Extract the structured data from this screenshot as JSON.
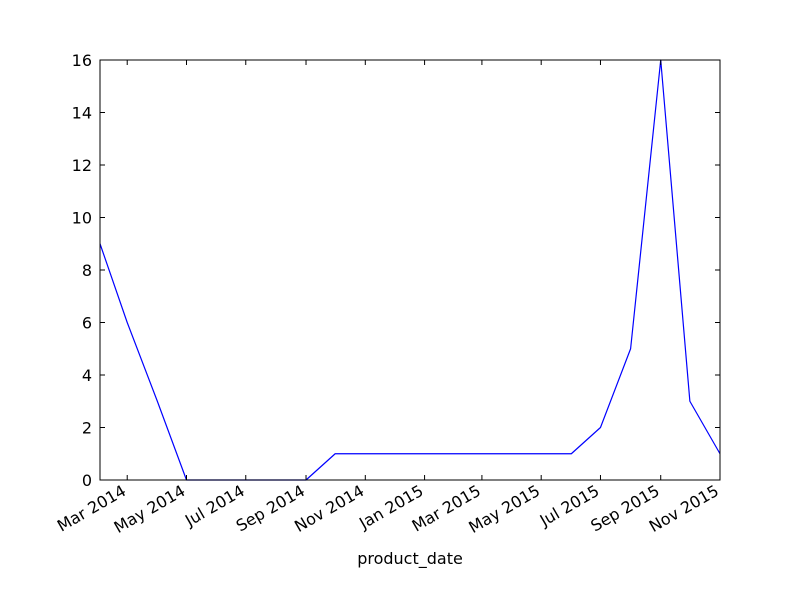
{
  "chart_data": {
    "type": "line",
    "title": "",
    "xlabel": "product_date",
    "ylabel": "",
    "ylim": [
      0,
      16
    ],
    "yticks": [
      0,
      2,
      4,
      6,
      8,
      10,
      12,
      14,
      16
    ],
    "xlim": [
      "2014-02-01",
      "2015-11-01"
    ],
    "xticks": [
      {
        "date": "2014-03-01",
        "label": "Mar 2014"
      },
      {
        "date": "2014-05-01",
        "label": "May 2014"
      },
      {
        "date": "2014-07-01",
        "label": "Jul 2014"
      },
      {
        "date": "2014-09-01",
        "label": "Sep 2014"
      },
      {
        "date": "2014-11-01",
        "label": "Nov 2014"
      },
      {
        "date": "2015-01-01",
        "label": "Jan 2015"
      },
      {
        "date": "2015-03-01",
        "label": "Mar 2015"
      },
      {
        "date": "2015-05-01",
        "label": "May 2015"
      },
      {
        "date": "2015-07-01",
        "label": "Jul 2015"
      },
      {
        "date": "2015-09-01",
        "label": "Sep 2015"
      },
      {
        "date": "2015-11-01",
        "label": "Nov 2015"
      }
    ],
    "grid": false,
    "series": [
      {
        "color": "#0000ff",
        "x": [
          "2014-02-01",
          "2014-03-01",
          "2014-04-01",
          "2014-05-01",
          "2014-06-01",
          "2014-07-01",
          "2014-08-01",
          "2014-09-01",
          "2014-10-01",
          "2014-11-01",
          "2014-12-01",
          "2015-01-01",
          "2015-02-01",
          "2015-03-01",
          "2015-04-01",
          "2015-05-01",
          "2015-06-01",
          "2015-07-01",
          "2015-08-01",
          "2015-09-01",
          "2015-10-01",
          "2015-11-01"
        ],
        "values": [
          9,
          6,
          3,
          0,
          0,
          0,
          0,
          0,
          1,
          1,
          1,
          1,
          1,
          1,
          1,
          1,
          1,
          2,
          5,
          16,
          3,
          1
        ]
      }
    ]
  }
}
